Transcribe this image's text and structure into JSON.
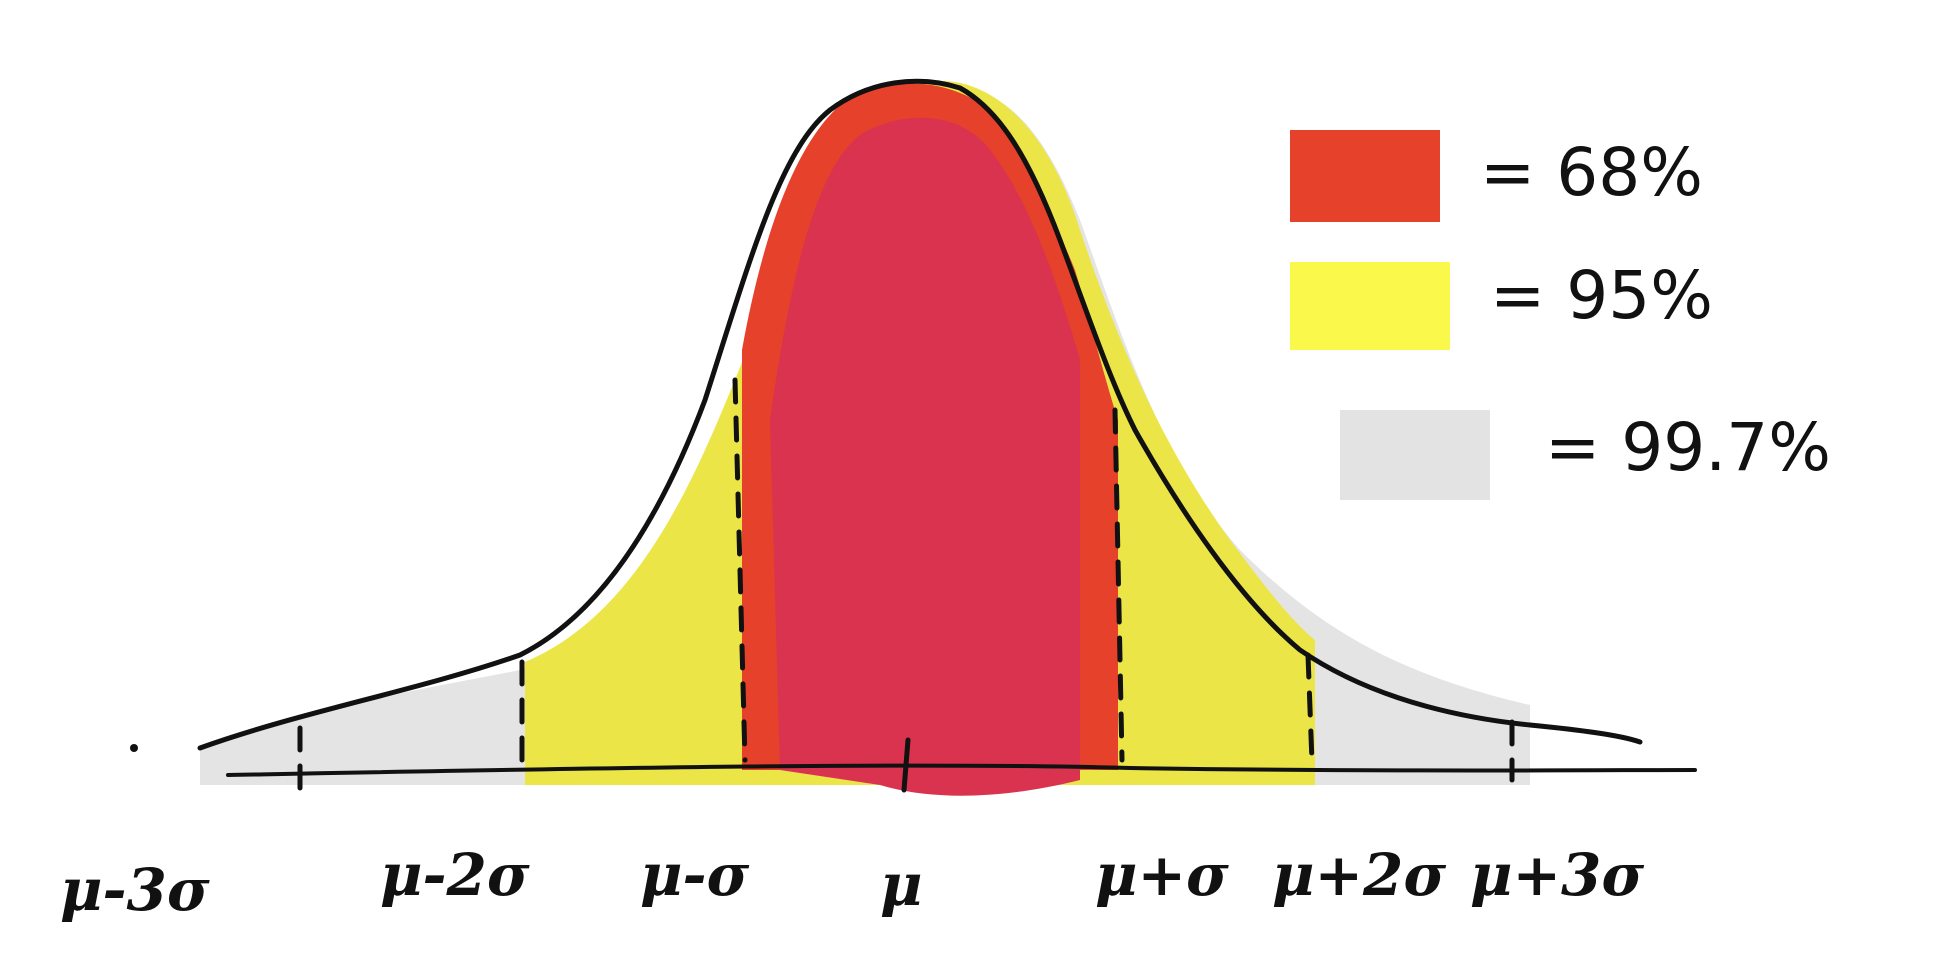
{
  "axis_labels": {
    "m3": "μ-3σ",
    "m2": "μ-2σ",
    "m1": "μ-σ",
    "mu": "μ",
    "p1": "μ+σ",
    "p2": "μ+2σ",
    "p3": "μ+3σ"
  },
  "legend": [
    {
      "text": "= 68%",
      "color": "#e5412b"
    },
    {
      "text": "= 95%",
      "color": "#fbf84c"
    },
    {
      "text": "= 99.7%",
      "color": "#e3e3e3"
    }
  ],
  "colors": {
    "one_sigma_band": "#e5412b",
    "one_sigma_core": "#d93350",
    "two_sigma_band": "#ebe547",
    "three_sigma_band": "#e3e3e3",
    "ink": "#111111"
  }
}
